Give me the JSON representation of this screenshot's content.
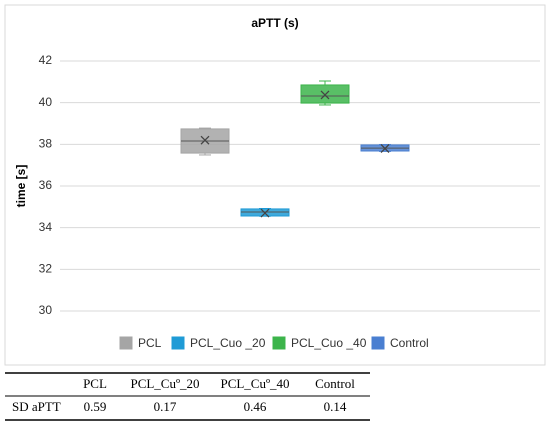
{
  "chart_data": {
    "type": "box",
    "title": "aPTT (s)",
    "y_label": "time [s]",
    "ylim": [
      30,
      42
    ],
    "yticks": [
      30,
      32,
      34,
      36,
      38,
      40,
      42
    ],
    "grid": true,
    "legend": "bottom",
    "series": [
      {
        "name": "PCL",
        "color": "#a5a5a5",
        "min": 37.49,
        "q1": 37.58,
        "median": 38.16,
        "q3": 38.74,
        "max": 38.78,
        "mean": 38.2
      },
      {
        "name": "PCL_Cuo _20",
        "color": "#1f9bd6",
        "min": 34.55,
        "q1": 34.56,
        "median": 34.75,
        "q3": 34.9,
        "max": 34.92,
        "mean": 34.7
      },
      {
        "name": "PCL_Cuo _40",
        "color": "#3cb44b",
        "min": 39.89,
        "q1": 39.98,
        "median": 40.32,
        "q3": 40.85,
        "max": 41.04,
        "mean": 40.37
      },
      {
        "name": "Control",
        "color": "#4a7fd1",
        "min": 37.66,
        "q1": 37.68,
        "median": 37.82,
        "q3": 37.97,
        "max": 37.99,
        "mean": 37.8
      }
    ]
  },
  "table": {
    "header": [
      "PCL",
      "PCL_Cuº_20",
      "PCL_Cuº_40",
      "Control"
    ],
    "rows": [
      {
        "label": "SD aPTT",
        "values": [
          0.59,
          0.17,
          0.46,
          0.14
        ]
      }
    ]
  }
}
